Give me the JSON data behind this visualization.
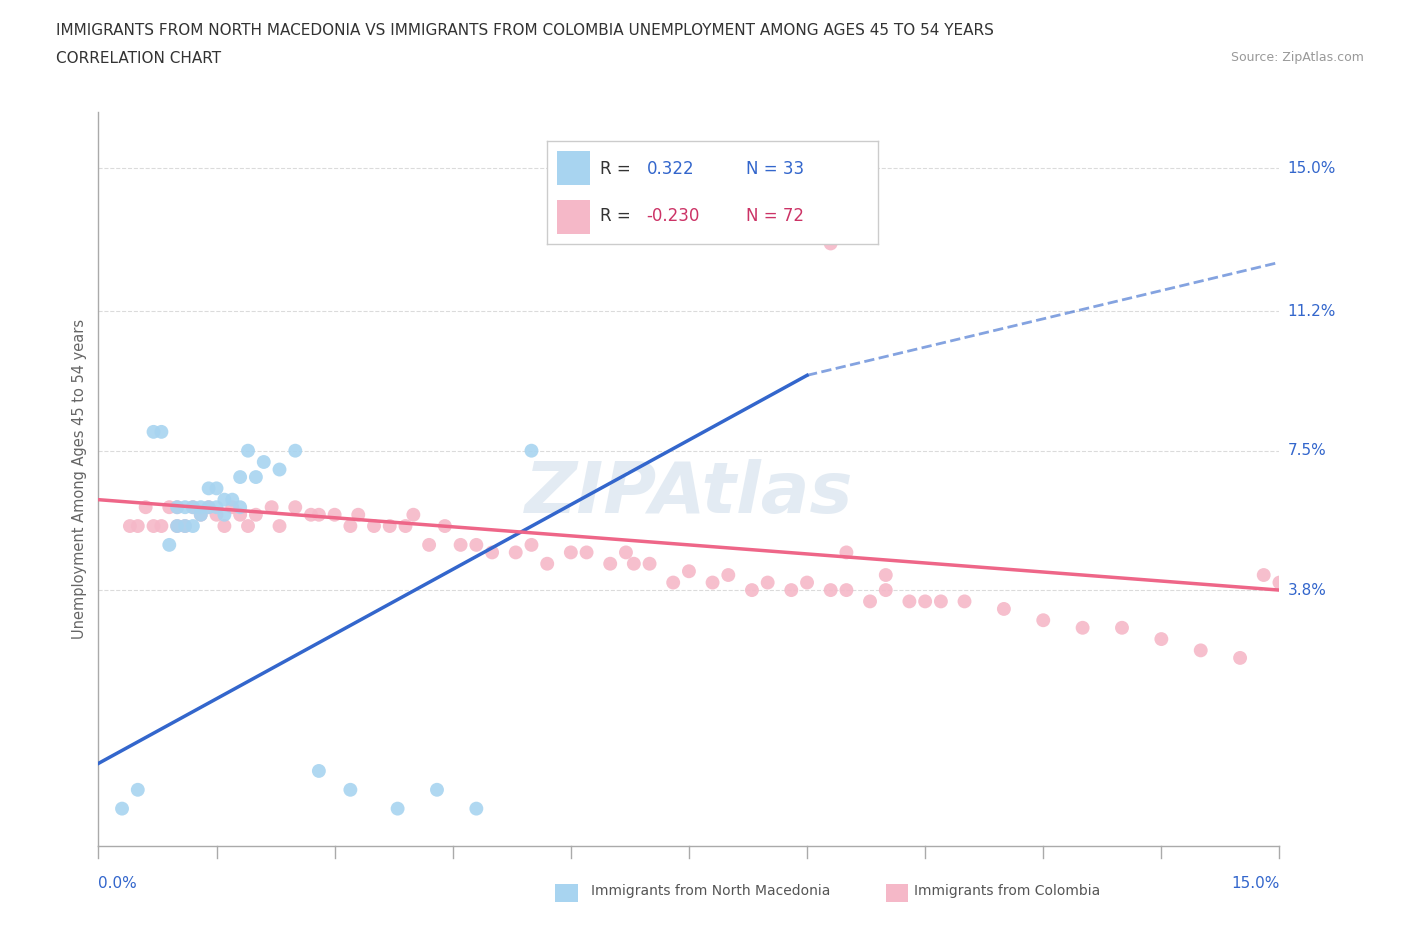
{
  "title_line1": "IMMIGRANTS FROM NORTH MACEDONIA VS IMMIGRANTS FROM COLOMBIA UNEMPLOYMENT AMONG AGES 45 TO 54 YEARS",
  "title_line2": "CORRELATION CHART",
  "source_text": "Source: ZipAtlas.com",
  "ylabel": "Unemployment Among Ages 45 to 54 years",
  "ylabel_right_labels": [
    "15.0%",
    "11.2%",
    "7.5%",
    "3.8%"
  ],
  "ylabel_right_values": [
    0.15,
    0.112,
    0.075,
    0.038
  ],
  "xmin": 0.0,
  "xmax": 0.15,
  "ymin": -0.03,
  "ymax": 0.165,
  "color_blue": "#A8D4F0",
  "color_pink": "#F5B8C8",
  "color_blue_line": "#3366CC",
  "color_pink_line": "#EE6688",
  "color_blue_text": "#3366CC",
  "color_pink_text": "#CC3366",
  "color_grid": "#CCCCCC",
  "north_macedonia_x": [
    0.003,
    0.005,
    0.007,
    0.008,
    0.009,
    0.01,
    0.01,
    0.011,
    0.011,
    0.012,
    0.012,
    0.013,
    0.013,
    0.014,
    0.014,
    0.015,
    0.015,
    0.016,
    0.016,
    0.017,
    0.018,
    0.018,
    0.019,
    0.02,
    0.021,
    0.023,
    0.025,
    0.028,
    0.032,
    0.038,
    0.043,
    0.048,
    0.055
  ],
  "north_macedonia_y": [
    -0.02,
    -0.015,
    0.08,
    0.08,
    0.05,
    0.055,
    0.06,
    0.055,
    0.06,
    0.055,
    0.06,
    0.058,
    0.06,
    0.06,
    0.065,
    0.06,
    0.065,
    0.058,
    0.062,
    0.062,
    0.06,
    0.068,
    0.075,
    0.068,
    0.072,
    0.07,
    0.075,
    -0.01,
    -0.015,
    -0.02,
    -0.015,
    -0.02,
    0.075
  ],
  "colombia_x": [
    0.004,
    0.005,
    0.006,
    0.007,
    0.008,
    0.009,
    0.01,
    0.01,
    0.011,
    0.012,
    0.013,
    0.014,
    0.015,
    0.016,
    0.017,
    0.018,
    0.019,
    0.02,
    0.022,
    0.023,
    0.025,
    0.027,
    0.028,
    0.03,
    0.032,
    0.033,
    0.035,
    0.037,
    0.039,
    0.04,
    0.042,
    0.044,
    0.046,
    0.048,
    0.05,
    0.053,
    0.055,
    0.057,
    0.06,
    0.062,
    0.065,
    0.067,
    0.068,
    0.07,
    0.073,
    0.075,
    0.078,
    0.08,
    0.083,
    0.085,
    0.088,
    0.09,
    0.093,
    0.095,
    0.098,
    0.1,
    0.103,
    0.107,
    0.11,
    0.115,
    0.12,
    0.125,
    0.13,
    0.135,
    0.14,
    0.145,
    0.148,
    0.15,
    0.093,
    0.095,
    0.1,
    0.105
  ],
  "colombia_y": [
    0.055,
    0.055,
    0.06,
    0.055,
    0.055,
    0.06,
    0.055,
    0.06,
    0.055,
    0.06,
    0.058,
    0.06,
    0.058,
    0.055,
    0.06,
    0.058,
    0.055,
    0.058,
    0.06,
    0.055,
    0.06,
    0.058,
    0.058,
    0.058,
    0.055,
    0.058,
    0.055,
    0.055,
    0.055,
    0.058,
    0.05,
    0.055,
    0.05,
    0.05,
    0.048,
    0.048,
    0.05,
    0.045,
    0.048,
    0.048,
    0.045,
    0.048,
    0.045,
    0.045,
    0.04,
    0.043,
    0.04,
    0.042,
    0.038,
    0.04,
    0.038,
    0.04,
    0.038,
    0.038,
    0.035,
    0.038,
    0.035,
    0.035,
    0.035,
    0.033,
    0.03,
    0.028,
    0.028,
    0.025,
    0.022,
    0.02,
    0.042,
    0.04,
    0.13,
    0.048,
    0.042,
    0.035
  ]
}
